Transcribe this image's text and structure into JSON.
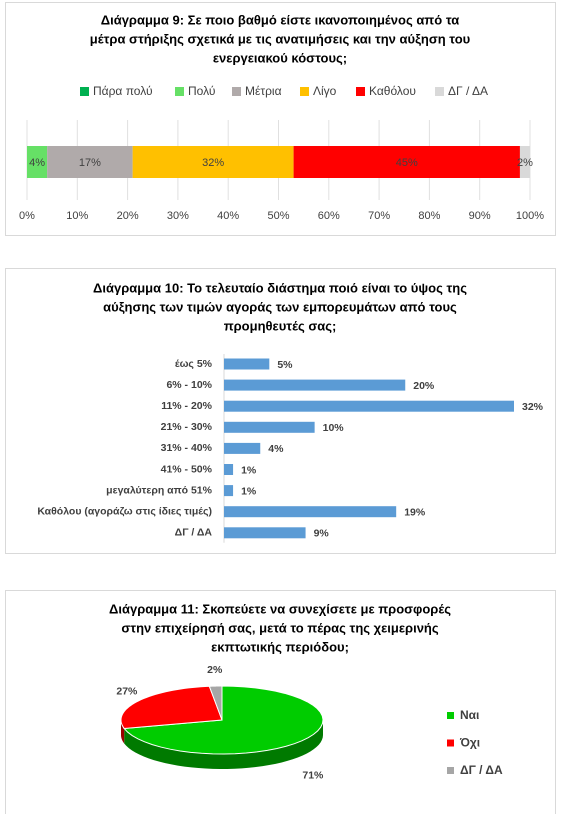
{
  "chart_data": [
    {
      "type": "stacked-bar",
      "title": [
        "Διάγραμμα 9: Σε ποιο βαθμό είστε ικανοποιημένος από τα",
        "μέτρα στήριξης σχετικά με τις ανατιμήσεις και την αύξηση του",
        "ενεργειακού κόστους;"
      ],
      "series": [
        {
          "name": "Πάρα πολύ",
          "color": "#00b050",
          "values": [
            0
          ]
        },
        {
          "name": "Πολύ",
          "color": "#66e066",
          "values": [
            4
          ],
          "value_labels": [
            "4%"
          ]
        },
        {
          "name": "Μέτρια",
          "color": "#b0aaaa",
          "values": [
            17
          ],
          "value_labels": [
            "17%"
          ]
        },
        {
          "name": "Λίγο",
          "color": "#ffc000",
          "values": [
            32
          ],
          "value_labels": [
            "32%"
          ]
        },
        {
          "name": "Καθόλου",
          "color": "#ff0000",
          "values": [
            45
          ],
          "value_labels": [
            "45%"
          ]
        },
        {
          "name": "ΔΓ / ΔΑ",
          "color": "#d9d9d9",
          "values": [
            2
          ],
          "value_labels": [
            "2%"
          ]
        }
      ],
      "xlim": [
        0,
        100
      ],
      "xticks": [
        {
          "value": 0,
          "label": "0%"
        },
        {
          "value": 10,
          "label": "10%"
        },
        {
          "value": 20,
          "label": "20%"
        },
        {
          "value": 30,
          "label": "30%"
        },
        {
          "value": 40,
          "label": "40%"
        },
        {
          "value": 50,
          "label": "50%"
        },
        {
          "value": 60,
          "label": "60%"
        },
        {
          "value": 70,
          "label": "70%"
        },
        {
          "value": 80,
          "label": "80%"
        },
        {
          "value": 90,
          "label": "90%"
        },
        {
          "value": 100,
          "label": "100%"
        }
      ],
      "grid": true,
      "legend": "top"
    },
    {
      "type": "hbar",
      "title": [
        "Διάγραμμα 10: Το τελευταίο διάστημα ποιό είναι το ύψος της",
        "αύξησης των τιμών αγοράς των εμπορευμάτων από τους",
        "προμηθευτές σας;"
      ],
      "categories": [
        "έως 5%",
        "6% - 10%",
        "11% - 20%",
        "21% - 30%",
        "31% - 40%",
        "41% - 50%",
        "μεγαλύτερη από 51%",
        "Καθόλου (αγοράζω στις ίδιες τιμές)",
        "ΔΓ / ΔΑ"
      ],
      "values": [
        5,
        20,
        32,
        10,
        4,
        1,
        1,
        19,
        9
      ],
      "value_labels": [
        "5%",
        "20%",
        "32%",
        "10%",
        "4%",
        "1%",
        "1%",
        "19%",
        "9%"
      ],
      "color": "#5b9bd5"
    },
    {
      "type": "pie",
      "title": [
        "Διάγραμμα 11: Σκοπεύετε να συνεχίσετε με προσφορές",
        "στην επιχείρησή σας, μετά το πέρας της χειμερινής",
        "εκπτωτικής περιόδου;"
      ],
      "categories": [
        "Ναι",
        "Όχι",
        "ΔΓ / ΔΑ"
      ],
      "values": [
        71,
        27,
        2
      ],
      "value_labels": [
        "71%",
        "27%",
        "2%"
      ],
      "colors": [
        "#00cc00",
        "#ff0000",
        "#a6a6a6"
      ],
      "legend": "right"
    }
  ]
}
